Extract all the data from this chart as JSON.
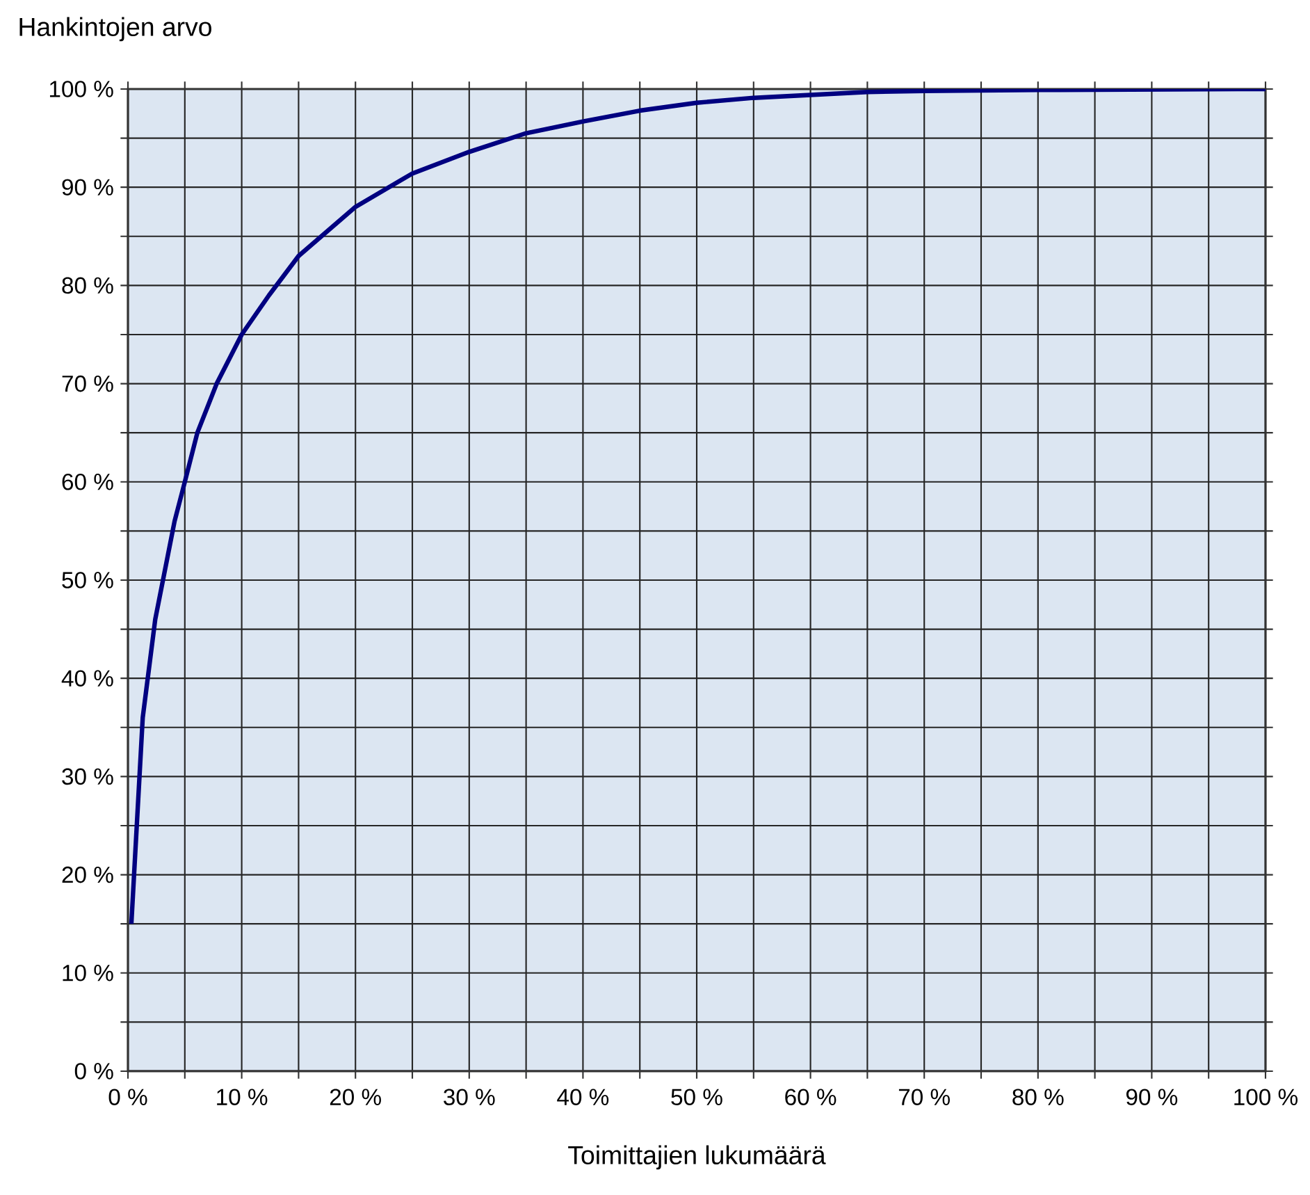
{
  "chart_data": {
    "type": "line",
    "xlabel": "Toimittajien lukumäärä",
    "ylabel": "Hankintojen arvo",
    "x": [
      0.3,
      1.3,
      2.4,
      4.1,
      5,
      6.1,
      7.8,
      10,
      12.4,
      15,
      20,
      25,
      30,
      35,
      40,
      45,
      50,
      55,
      60,
      65,
      70,
      80,
      100
    ],
    "values": [
      15,
      36,
      46,
      56,
      60,
      65,
      70,
      75,
      79,
      83,
      88,
      91.4,
      93.6,
      95.5,
      96.7,
      97.8,
      98.6,
      99.1,
      99.4,
      99.7,
      99.8,
      99.9,
      100
    ],
    "color": "#000080",
    "grid": true,
    "xlim": [
      0,
      100
    ],
    "ylim": [
      0,
      100
    ],
    "xticks": [
      {
        "value": 0,
        "label": "0 %"
      },
      {
        "value": 5,
        "label": null
      },
      {
        "value": 10,
        "label": "10 %"
      },
      {
        "value": 15,
        "label": null
      },
      {
        "value": 20,
        "label": "20 %"
      },
      {
        "value": 25,
        "label": null
      },
      {
        "value": 30,
        "label": "30 %"
      },
      {
        "value": 35,
        "label": null
      },
      {
        "value": 40,
        "label": "40 %"
      },
      {
        "value": 45,
        "label": null
      },
      {
        "value": 50,
        "label": "50 %"
      },
      {
        "value": 55,
        "label": null
      },
      {
        "value": 60,
        "label": "60 %"
      },
      {
        "value": 65,
        "label": null
      },
      {
        "value": 70,
        "label": "70 %"
      },
      {
        "value": 75,
        "label": null
      },
      {
        "value": 80,
        "label": "80 %"
      },
      {
        "value": 85,
        "label": null
      },
      {
        "value": 90,
        "label": "90 %"
      },
      {
        "value": 95,
        "label": null
      },
      {
        "value": 100,
        "label": "100 %"
      }
    ],
    "yticks": [
      {
        "value": 0,
        "label": "0 %"
      },
      {
        "value": 5,
        "label": null
      },
      {
        "value": 10,
        "label": "10 %"
      },
      {
        "value": 15,
        "label": null
      },
      {
        "value": 20,
        "label": "20 %"
      },
      {
        "value": 25,
        "label": null
      },
      {
        "value": 30,
        "label": "30 %"
      },
      {
        "value": 35,
        "label": null
      },
      {
        "value": 40,
        "label": "40 %"
      },
      {
        "value": 45,
        "label": null
      },
      {
        "value": 50,
        "label": "50 %"
      },
      {
        "value": 55,
        "label": null
      },
      {
        "value": 60,
        "label": "60 %"
      },
      {
        "value": 65,
        "label": null
      },
      {
        "value": 70,
        "label": "70 %"
      },
      {
        "value": 75,
        "label": null
      },
      {
        "value": 80,
        "label": "80 %"
      },
      {
        "value": 85,
        "label": null
      },
      {
        "value": 90,
        "label": "90 %"
      },
      {
        "value": 95,
        "label": null
      },
      {
        "value": 100,
        "label": "100 %"
      }
    ]
  }
}
